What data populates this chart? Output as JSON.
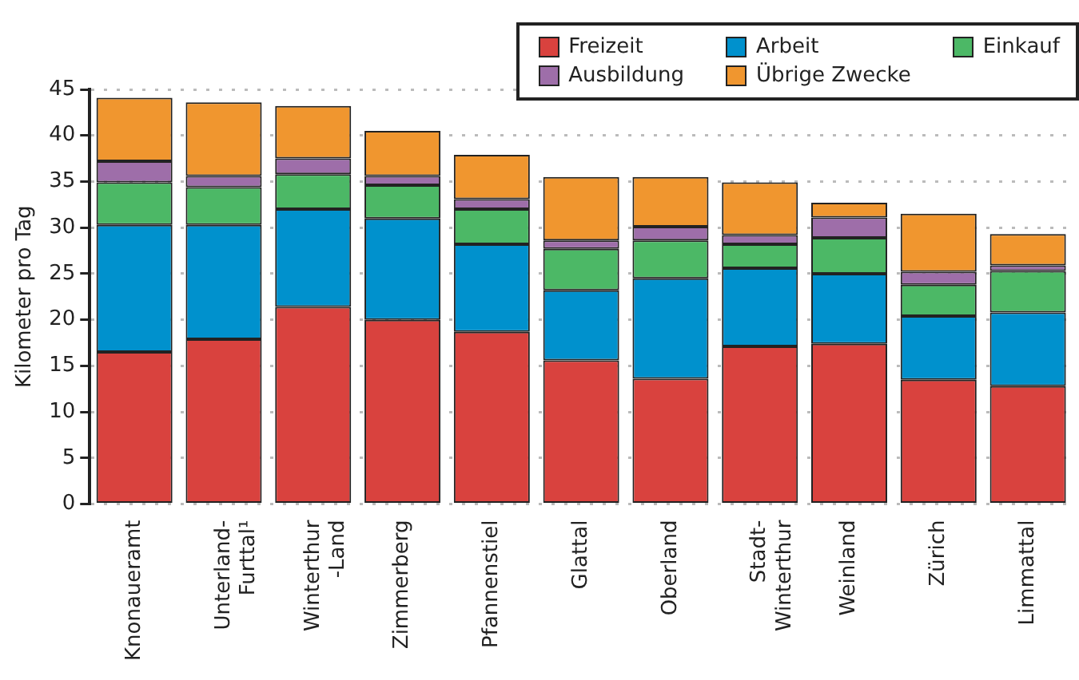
{
  "chart_data": {
    "type": "bar",
    "stacked": true,
    "ylabel": "Kilometer pro Tag",
    "categories": [
      "Knonaueramt",
      "Unterland-\nFurttal¹",
      "Winterthur\n-Land",
      "Zimmerberg",
      "Pfannenstiel",
      "Glattal",
      "Oberland",
      "Stadt-\nWinterthur",
      "Weinland",
      "Zürich",
      "Limmattal"
    ],
    "series": [
      {
        "name": "Freizeit",
        "color": "#d9423e",
        "values": [
          16.5,
          17.9,
          21.4,
          20.0,
          18.7,
          15.6,
          13.6,
          17.1,
          17.4,
          13.5,
          12.8
        ]
      },
      {
        "name": "Arbeit",
        "color": "#0091cd",
        "values": [
          13.8,
          12.4,
          10.6,
          11.0,
          9.5,
          7.6,
          10.9,
          8.5,
          7.6,
          6.9,
          8.0
        ]
      },
      {
        "name": "Einkauf",
        "color": "#4cb866",
        "values": [
          4.6,
          4.1,
          3.8,
          3.6,
          3.8,
          4.5,
          4.1,
          2.6,
          3.9,
          3.4,
          4.5
        ]
      },
      {
        "name": "Ausbildung",
        "color": "#9e6ea9",
        "values": [
          2.3,
          1.2,
          1.7,
          1.0,
          1.1,
          0.9,
          1.5,
          1.0,
          2.2,
          1.4,
          0.6
        ]
      },
      {
        "name": "Übrige Zwecke",
        "color": "#f0962f",
        "values": [
          6.9,
          8.0,
          5.7,
          4.9,
          4.8,
          6.9,
          5.4,
          5.7,
          1.6,
          6.3,
          3.4
        ]
      }
    ],
    "ylim": [
      0,
      45
    ],
    "yticks": [
      0,
      5,
      10,
      15,
      20,
      25,
      30,
      35,
      40,
      45
    ],
    "grid": "y",
    "legend": "top right"
  }
}
